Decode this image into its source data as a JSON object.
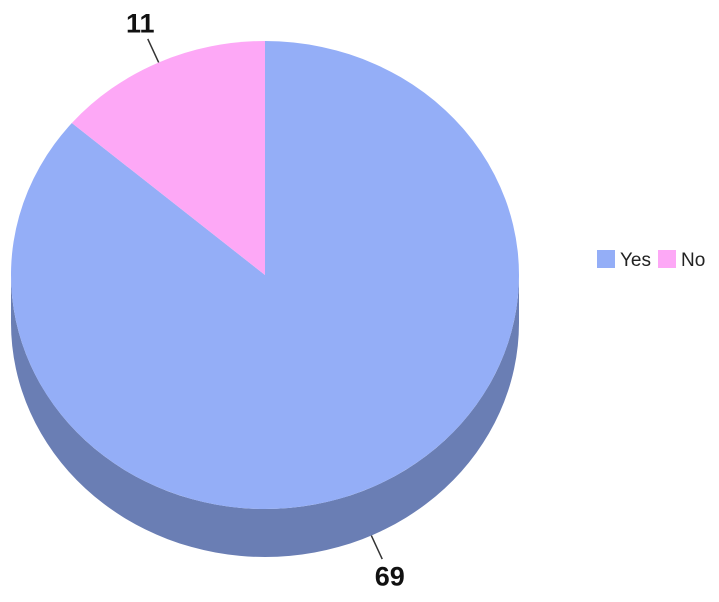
{
  "chart_data": {
    "type": "pie",
    "style": "3d",
    "categories": [
      "Yes",
      "No"
    ],
    "values": [
      69,
      11
    ],
    "labels": [
      "69",
      "11"
    ],
    "colors": [
      "#94AEF7",
      "#FDA8F6"
    ],
    "side_colors": [
      "#6A7EB4",
      "#B77AB2"
    ],
    "legend": {
      "placement": "right",
      "entries": [
        "Yes",
        "No"
      ]
    }
  }
}
